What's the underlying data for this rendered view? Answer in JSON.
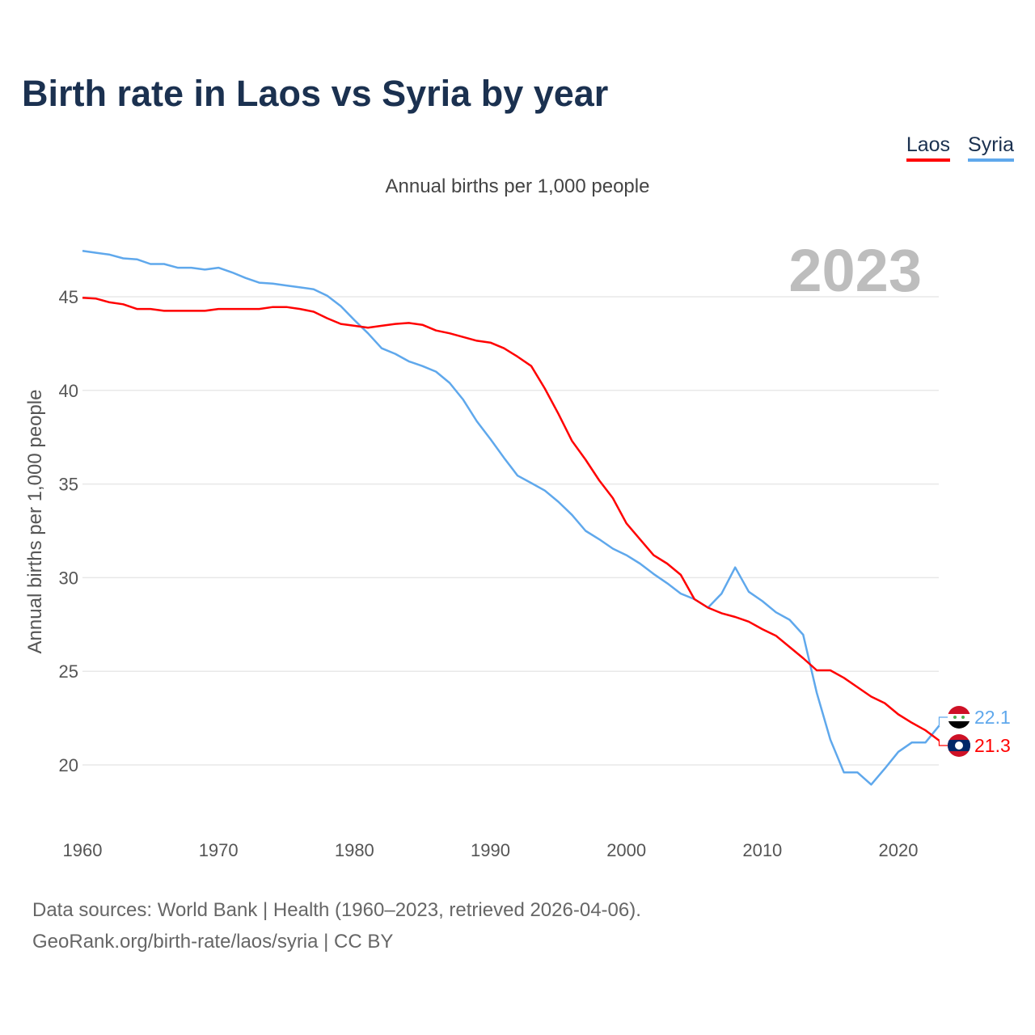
{
  "title": "Birth rate in Laos vs Syria by year",
  "subtitle": "Annual births per 1,000 people",
  "year_label": "2023",
  "legend": [
    {
      "name": "Laos",
      "color": "#ff0000"
    },
    {
      "name": "Syria",
      "color": "#5fa8ec"
    }
  ],
  "footer": {
    "line1": "Data sources: World Bank | Health (1960–2023, retrieved 2026-04-06).",
    "line2": "GeoRank.org/birth-rate/laos/syria | CC BY"
  },
  "chart_data": {
    "type": "line",
    "title": "Birth rate in Laos vs Syria by year",
    "xlabel": "",
    "ylabel": "Annual births per 1,000 people",
    "xlim": [
      1960,
      2023
    ],
    "ylim": [
      17.5,
      48
    ],
    "xticks": [
      1960,
      1970,
      1980,
      1990,
      2000,
      2010,
      2020
    ],
    "yticks": [
      20,
      25,
      30,
      35,
      40,
      45
    ],
    "grid": true,
    "legend_position": "top-right",
    "x_start": 1960,
    "series": [
      {
        "name": "Laos",
        "color": "#ff0000",
        "end_label": "21.3",
        "values": [
          44.95,
          44.9,
          44.7,
          44.6,
          44.35,
          44.35,
          44.25,
          44.25,
          44.25,
          44.25,
          44.35,
          44.35,
          44.35,
          44.35,
          44.45,
          44.45,
          44.35,
          44.2,
          43.85,
          43.55,
          43.45,
          43.35,
          43.45,
          43.55,
          43.6,
          43.5,
          43.2,
          43.05,
          42.85,
          42.65,
          42.55,
          42.25,
          41.8,
          41.3,
          40.1,
          38.75,
          37.3,
          36.3,
          35.2,
          34.25,
          32.9,
          32.05,
          31.2,
          30.75,
          30.15,
          28.85,
          28.4,
          28.1,
          27.9,
          27.65,
          27.25,
          26.9,
          26.3,
          25.7,
          25.05,
          25.05,
          24.65,
          24.15,
          23.65,
          23.3,
          22.7,
          22.25,
          21.85,
          21.3
        ]
      },
      {
        "name": "Syria",
        "color": "#5fa8ec",
        "end_label": "22.1",
        "values": [
          47.45,
          47.35,
          47.25,
          47.05,
          47.0,
          46.75,
          46.75,
          46.55,
          46.55,
          46.45,
          46.55,
          46.3,
          46.0,
          45.75,
          45.7,
          45.6,
          45.5,
          45.4,
          45.05,
          44.5,
          43.75,
          43.05,
          42.25,
          41.95,
          41.55,
          41.3,
          41.0,
          40.4,
          39.5,
          38.35,
          37.4,
          36.4,
          35.45,
          35.05,
          34.65,
          34.05,
          33.35,
          32.5,
          32.05,
          31.55,
          31.2,
          30.75,
          30.2,
          29.7,
          29.15,
          28.85,
          28.4,
          29.15,
          30.55,
          29.25,
          28.75,
          28.15,
          27.75,
          26.95,
          23.85,
          21.35,
          19.6,
          19.6,
          18.95,
          19.8,
          20.7,
          21.2,
          21.2,
          22.1
        ]
      }
    ]
  }
}
